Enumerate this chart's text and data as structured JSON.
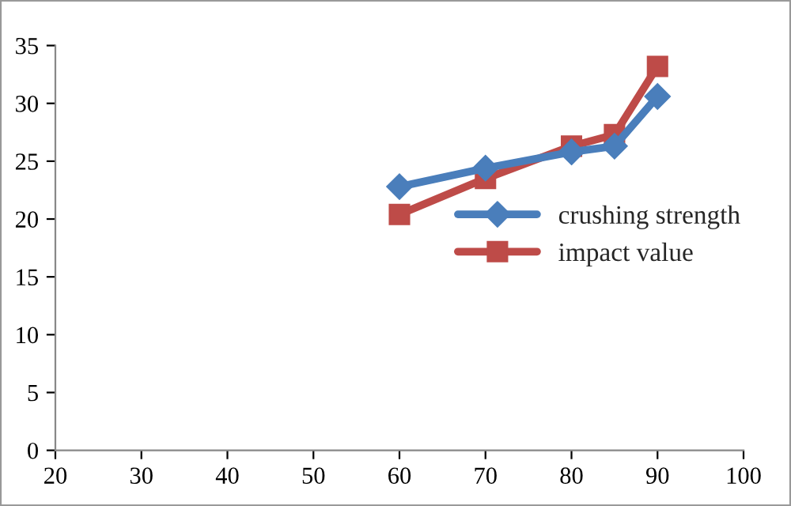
{
  "chart_data": {
    "type": "line",
    "x": [
      60,
      70,
      80,
      85,
      90
    ],
    "series": [
      {
        "name": "crushing strength",
        "color": "#4a7ebb",
        "marker": "diamond",
        "values": [
          22.8,
          24.4,
          25.8,
          26.3,
          30.6
        ]
      },
      {
        "name": "impact value",
        "color": "#be4b48",
        "marker": "square",
        "values": [
          20.4,
          23.5,
          26.3,
          27.3,
          33.2
        ]
      }
    ],
    "xlim": [
      20,
      100
    ],
    "xticks": [
      20,
      30,
      40,
      50,
      60,
      70,
      80,
      90,
      100
    ],
    "ylim": [
      0,
      35
    ],
    "yticks": [
      0,
      5,
      10,
      15,
      20,
      25,
      30,
      35
    ],
    "grid": false,
    "legend": "right",
    "line_style": "solid"
  }
}
